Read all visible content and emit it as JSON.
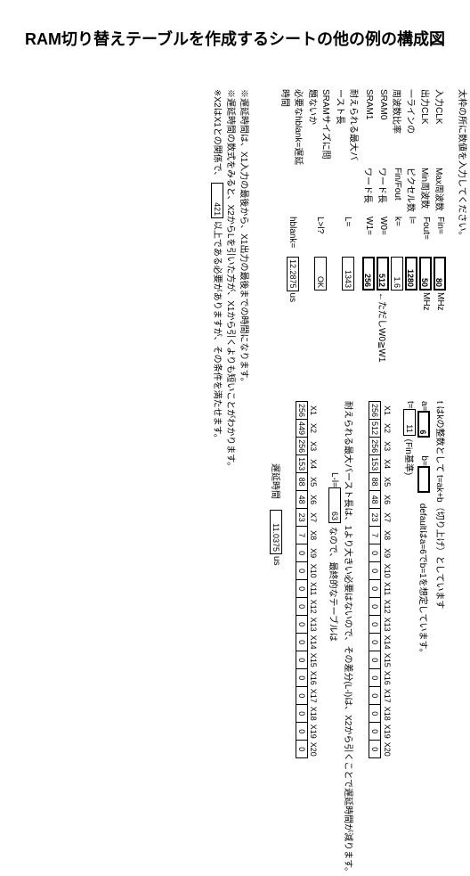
{
  "title": "RAM切り替えテーブルを作成するシートの他の例の構成図",
  "prompt": "太枠の所に数値を入力してください。",
  "params": {
    "rows": [
      {
        "l": "入力CLK",
        "m": "Max周波数",
        "p": "Fin=",
        "v": "80",
        "u": "MHz",
        "bold": true
      },
      {
        "l": "出力CLK",
        "m": "Min周波数",
        "p": "Fout=",
        "v": "50",
        "u": "MHz",
        "bold": true
      },
      {
        "l": "一ラインの",
        "m": "ピクセル数",
        "p": "l=",
        "v": "1280",
        "u": "",
        "bold": true
      },
      {
        "l": "周波数比率",
        "m": "Fin/Fout",
        "p": "k=",
        "v": "1.6",
        "u": "",
        "bold": false
      },
      {
        "l": "SRAM0",
        "m": "ワード長",
        "p": "W0=",
        "v": "512",
        "u": "←ただしW0≧W1",
        "bold": true
      },
      {
        "l": "SRAM1",
        "m": "ワード長",
        "p": "W1=",
        "v": "256",
        "u": "",
        "bold": true
      },
      {
        "l": "耐えられる最大バースト長",
        "m": "",
        "p": "L=",
        "v": "1343",
        "u": "",
        "bold": false
      },
      {
        "l": "SRAMサイズに問題ないか",
        "m": "",
        "p": "L>l?",
        "v": "OK",
        "u": "",
        "bold": false
      },
      {
        "l": "必要なhblank=遅延時間",
        "m": "",
        "p": "hblank=",
        "v": "12.2875",
        "u": "us",
        "bold": false
      }
    ]
  },
  "calc": {
    "line": "t はkの整数として t=ak+b（切り上げ）としています",
    "a_label": "a=",
    "a_val": "6",
    "b_label": "b=",
    "b_val": "",
    "default_note": "defaultはa=6でb=1を想定しています。",
    "t_label": "t=",
    "t_val": "11",
    "t_note": "(Fin基準)"
  },
  "seq_headers": [
    "X1",
    "X2",
    "X3",
    "X4",
    "X5",
    "X6",
    "X7",
    "X8",
    "X9",
    "X10",
    "X11",
    "X12",
    "X13",
    "X14",
    "X15",
    "X16",
    "X17",
    "X18",
    "X19",
    "X20"
  ],
  "seq1": [
    "256",
    "512",
    "256",
    "153",
    "88",
    "48",
    "23",
    "7",
    "0",
    "0",
    "0",
    "0",
    "0",
    "0",
    "0",
    "0",
    "0",
    "0",
    "0",
    "0"
  ],
  "burst": {
    "line1": "耐えられる最大バースト長は、1より大きい必要はないので、その差分(L-l)は、X2から引くことで遅延時間が減ります。",
    "ld_label": "L-l=",
    "ld_val": "63",
    "line2": "なので、最終的なテーブルは"
  },
  "seq2": [
    "256",
    "449",
    "256",
    "153",
    "88",
    "48",
    "23",
    "7",
    "0",
    "0",
    "0",
    "0",
    "0",
    "0",
    "0",
    "0",
    "0",
    "0",
    "0",
    "0"
  ],
  "delay": {
    "label": "遅延時間",
    "val": "11.0375",
    "unit": "us"
  },
  "footnotes": [
    "※遅延時間は、X1入力の最後から、X1出力の最後までの時間になります。",
    "※遅延時間の数式をみると、X2からLを引いた方が、X1から引くよりも短いことがわかります。",
    "※X2はX1との関係で、________421 以上である必要がありますが、その条件を満たせます。"
  ],
  "foot_inline_val": "421"
}
